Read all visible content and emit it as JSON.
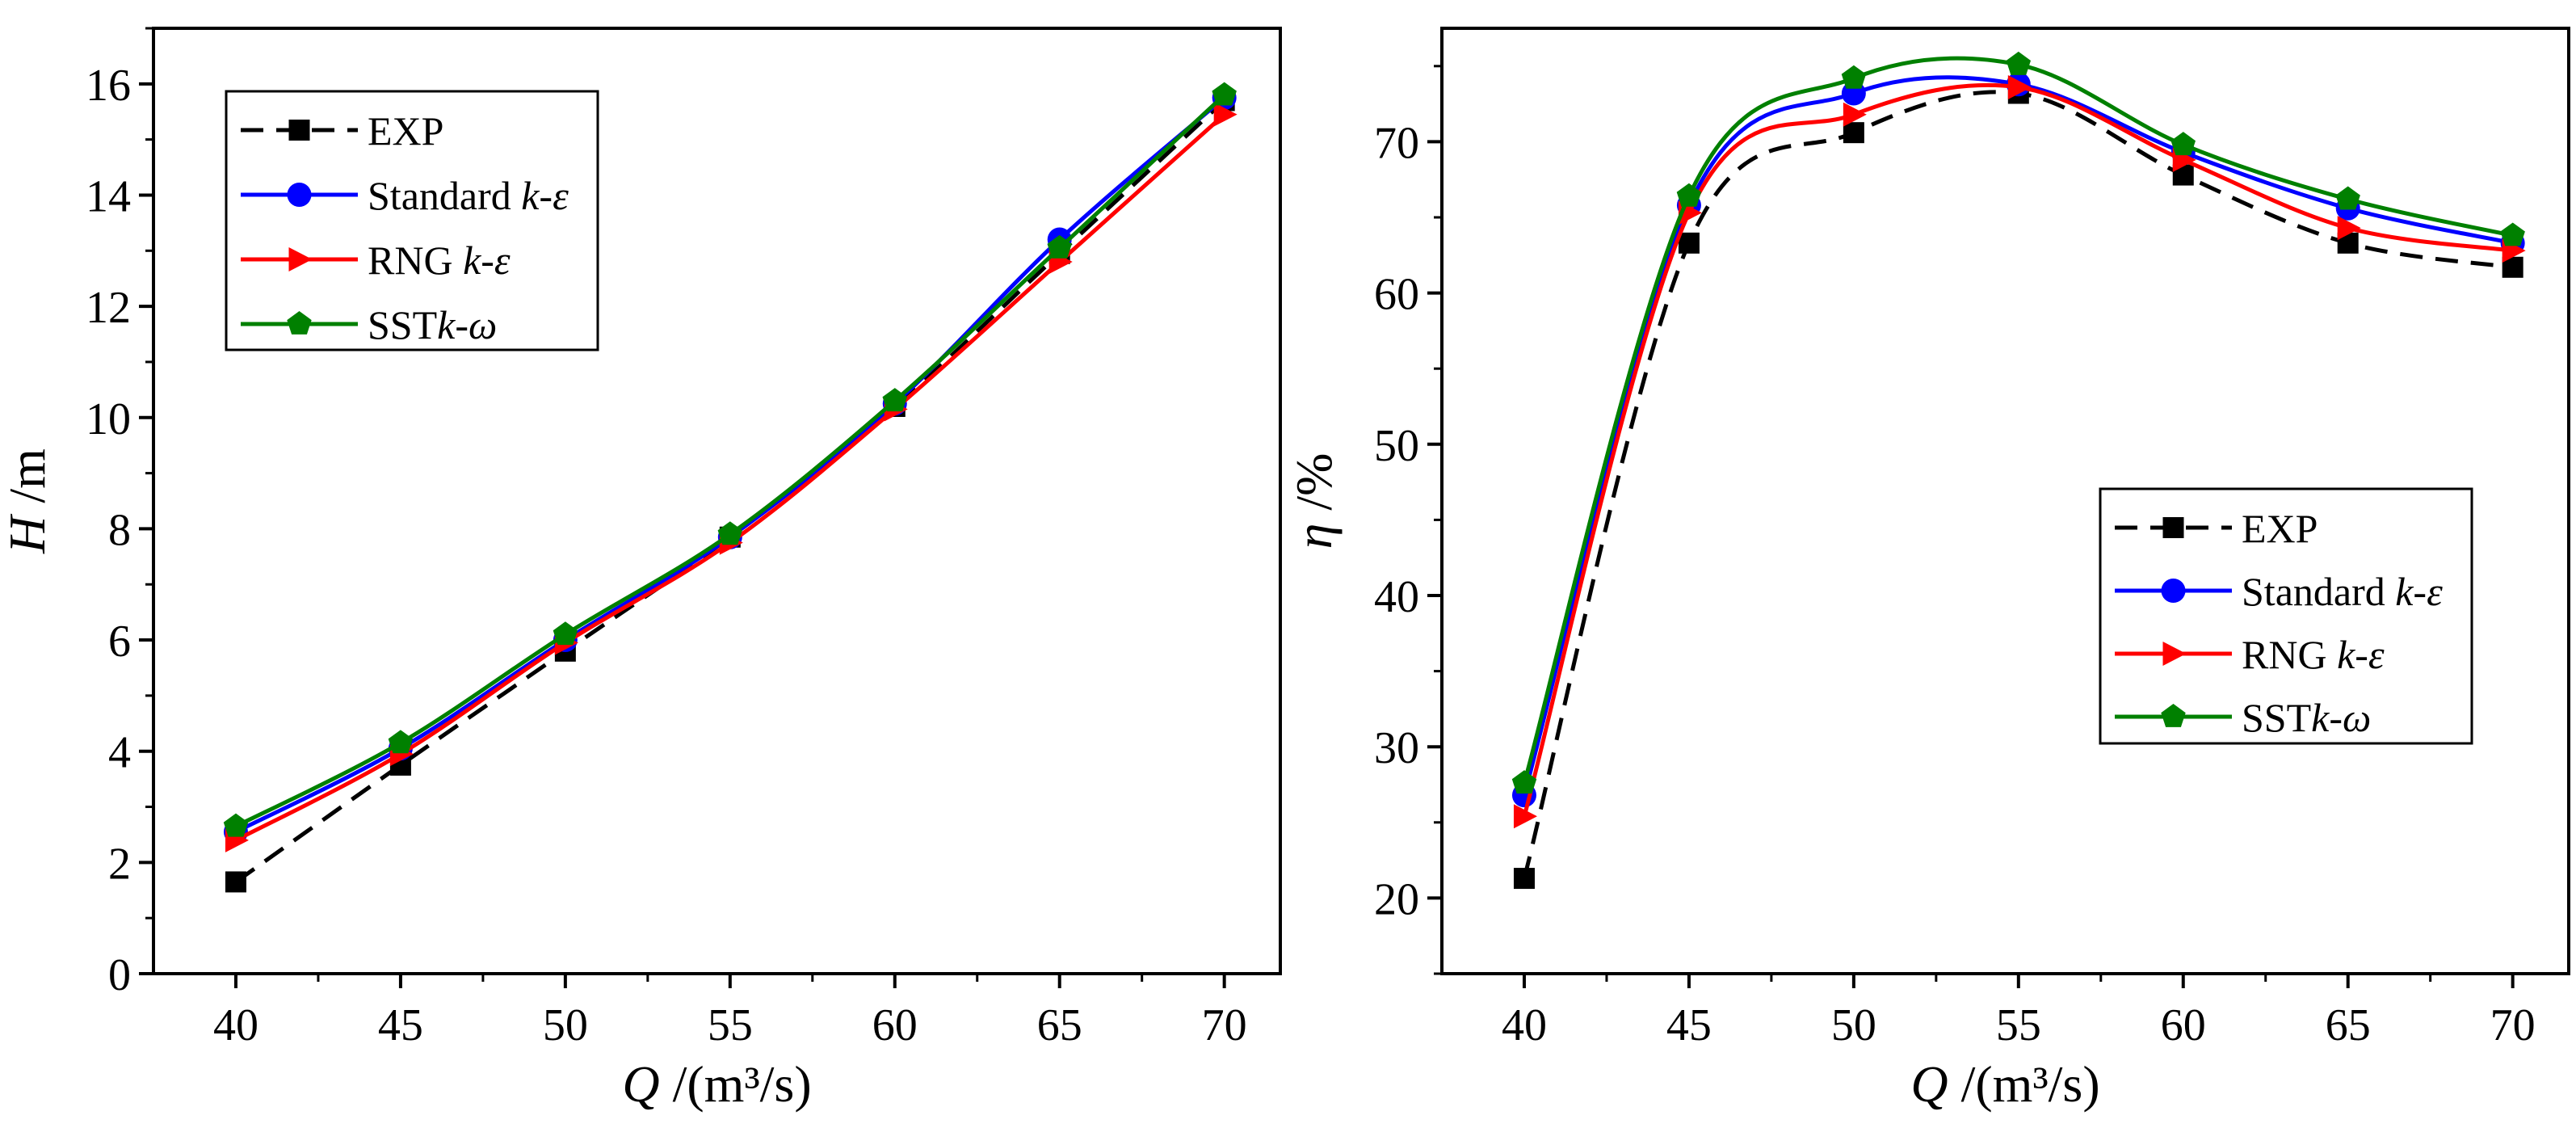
{
  "chart_data": [
    {
      "type": "line",
      "panel": "left",
      "title": "",
      "x": [
        40,
        45,
        50,
        55,
        60,
        65,
        70
      ],
      "xlabel": {
        "symbol": "Q",
        "unit": " /(m³/s)"
      },
      "ylabel": {
        "symbol": "H",
        "unit": " /m"
      },
      "xlim": [
        37.5,
        71.7
      ],
      "ylim": [
        0,
        17
      ],
      "xticks": [
        "40",
        "45",
        "50",
        "55",
        "60",
        "65",
        "70"
      ],
      "yticks": [
        "0",
        "2",
        "4",
        "6",
        "8",
        "10",
        "12",
        "14",
        "16"
      ],
      "ytick_values": [
        0,
        2,
        4,
        6,
        8,
        10,
        12,
        14,
        16
      ],
      "legend_position": "top-left",
      "series": [
        {
          "name": "EXP",
          "name_plain": "EXP",
          "name_italic": "",
          "color": "#000000",
          "dash": true,
          "marker": "square",
          "values": [
            1.65,
            3.75,
            5.8,
            7.85,
            10.2,
            12.95,
            15.7
          ]
        },
        {
          "name": "Standard k-ε",
          "name_plain": "Standard ",
          "name_italic": "k-ε",
          "color": "#0000ff",
          "dash": false,
          "marker": "circle",
          "values": [
            2.55,
            4.05,
            6.0,
            7.85,
            10.25,
            13.2,
            15.75
          ]
        },
        {
          "name": "RNG k-ε",
          "name_plain": "RNG ",
          "name_italic": "k-ε",
          "color": "#ff0000",
          "dash": false,
          "marker": "triangle-right",
          "values": [
            2.4,
            3.95,
            5.95,
            7.75,
            10.15,
            12.8,
            15.45
          ]
        },
        {
          "name": "SSTk-ω",
          "name_plain": "SST",
          "name_italic": "k-ω",
          "color": "#008000",
          "dash": false,
          "marker": "pentagon",
          "values": [
            2.65,
            4.15,
            6.1,
            7.9,
            10.3,
            13.05,
            15.8
          ]
        }
      ]
    },
    {
      "type": "line",
      "panel": "right",
      "title": "",
      "x": [
        40,
        45,
        50,
        55,
        60,
        65,
        70
      ],
      "xlabel": {
        "symbol": "Q",
        "unit": " /(m³/s)"
      },
      "ylabel": {
        "symbol": "η",
        "unit": " /%"
      },
      "xlim": [
        37.5,
        71.7
      ],
      "ylim": [
        15,
        77.5
      ],
      "xticks": [
        "40",
        "45",
        "50",
        "55",
        "60",
        "65",
        "70"
      ],
      "yticks": [
        "20",
        "30",
        "40",
        "50",
        "60",
        "70"
      ],
      "ytick_values": [
        20,
        30,
        40,
        50,
        60,
        70
      ],
      "legend_position": "center-right",
      "series": [
        {
          "name": "EXP",
          "name_plain": "EXP",
          "name_italic": "",
          "color": "#000000",
          "dash": true,
          "marker": "square",
          "values": [
            21.3,
            63.3,
            70.6,
            73.2,
            67.8,
            63.3,
            61.7
          ]
        },
        {
          "name": "Standard k-ε",
          "name_plain": "Standard ",
          "name_italic": "k-ε",
          "color": "#0000ff",
          "dash": false,
          "marker": "circle",
          "values": [
            26.8,
            65.8,
            73.2,
            73.8,
            69.3,
            65.6,
            63.3
          ]
        },
        {
          "name": "RNG k-ε",
          "name_plain": "RNG ",
          "name_italic": "k-ε",
          "color": "#ff0000",
          "dash": false,
          "marker": "triangle-right",
          "values": [
            25.4,
            65.3,
            71.8,
            73.6,
            68.8,
            64.3,
            62.8
          ]
        },
        {
          "name": "SSTk-ω",
          "name_plain": "SST",
          "name_italic": "k-ω",
          "color": "#008000",
          "dash": false,
          "marker": "pentagon",
          "values": [
            27.6,
            66.4,
            74.2,
            75.1,
            69.8,
            66.2,
            63.8
          ]
        }
      ]
    }
  ]
}
